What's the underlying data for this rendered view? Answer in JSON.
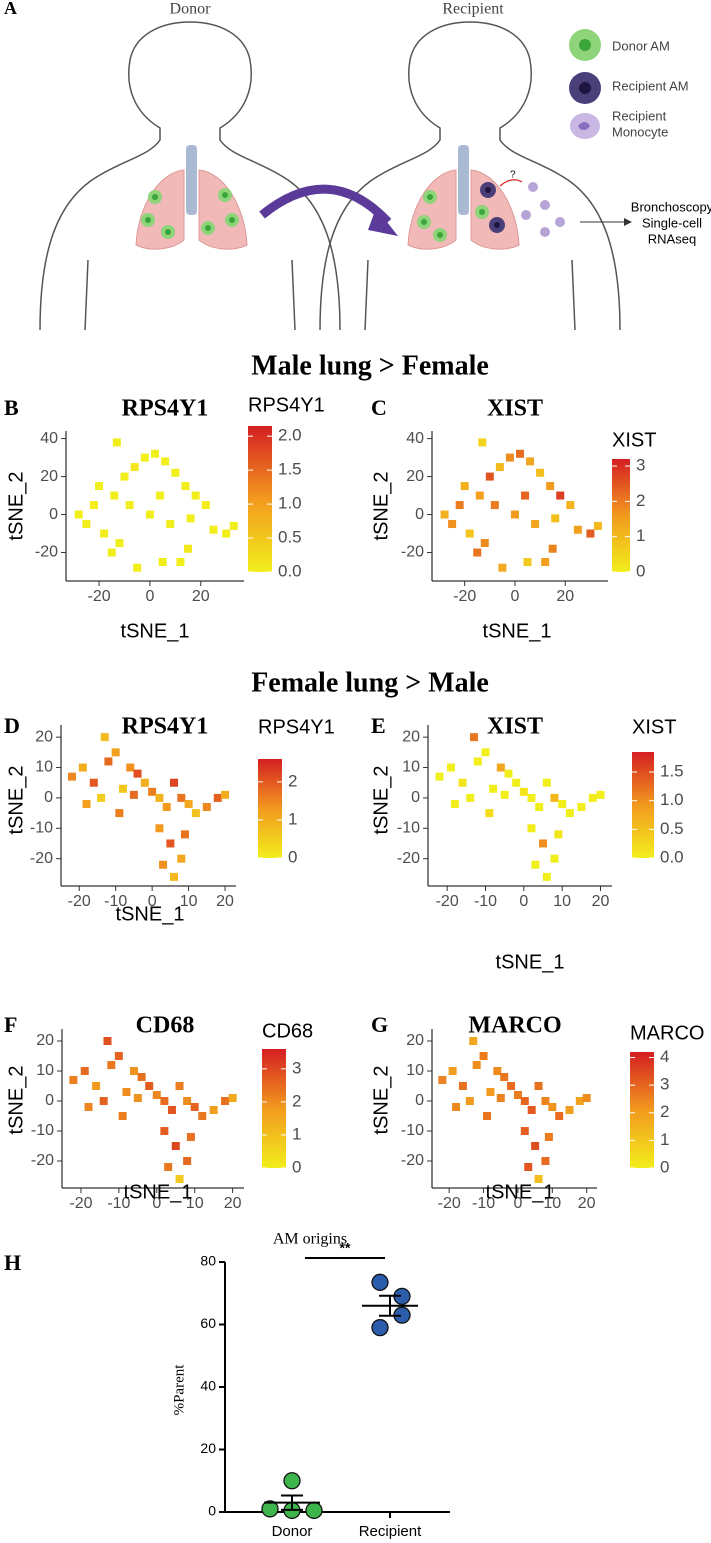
{
  "diagram": {
    "panel": "A",
    "donor": "Donor",
    "recipient": "Recipient",
    "question": "?",
    "legend": [
      [
        "Donor AM"
      ],
      [
        "Recipient AM"
      ],
      [
        "Recipient",
        "Monocyte"
      ]
    ],
    "outcome": [
      "Bronchoscopy",
      "Single-cell",
      "RNAseq"
    ]
  },
  "headings": [
    "Male lung > Female",
    "Female lung > Male"
  ],
  "chart_data": [
    {
      "type": "scatter",
      "panel": "B",
      "title": "RPS4Y1",
      "x_label": "tSNE_1",
      "y_label": "tSNE_2",
      "xlim": [
        -33,
        37
      ],
      "ylim": [
        -35,
        44
      ],
      "xticks": [
        -20,
        0,
        20
      ],
      "yticks": [
        -20,
        0,
        20,
        40
      ],
      "x": [
        -28,
        -22,
        -18,
        -14,
        -10,
        -6,
        -2,
        2,
        6,
        10,
        14,
        18,
        22,
        -25,
        -15,
        -5,
        5,
        15,
        25,
        30,
        33,
        -20,
        -8,
        0,
        8,
        16,
        -12,
        4,
        12,
        -13
      ],
      "y": [
        0,
        5,
        -10,
        10,
        20,
        25,
        30,
        32,
        28,
        22,
        15,
        10,
        5,
        -5,
        -20,
        -28,
        -25,
        -18,
        -8,
        -10,
        -6,
        15,
        5,
        0,
        -5,
        -2,
        -15,
        10,
        -25,
        38
      ],
      "values": [
        0,
        0,
        0,
        0,
        0,
        0.1,
        0,
        0,
        0,
        0,
        0,
        0,
        0,
        0,
        0,
        0,
        0,
        0.1,
        0,
        0,
        0,
        0,
        0,
        0,
        0,
        0,
        0,
        0,
        0,
        0
      ],
      "colorbar": {
        "title": "RPS4Y1",
        "lim": [
          0,
          2.15
        ],
        "colors": [
          "#f2ee1c",
          "#f29a1e",
          "#d41f22"
        ],
        "ticks": [
          {
            "value": 0,
            "label": "0.0"
          },
          {
            "value": 0.5,
            "label": "0.5"
          },
          {
            "value": 1,
            "label": "1.0"
          },
          {
            "value": 1.5,
            "label": "1.5"
          },
          {
            "value": 2,
            "label": "2.0"
          }
        ]
      }
    },
    {
      "type": "scatter",
      "panel": "C",
      "title": "XIST",
      "x_label": "tSNE_1",
      "y_label": "tSNE_2",
      "xlim": [
        -33,
        37
      ],
      "ylim": [
        -35,
        44
      ],
      "xticks": [
        -20,
        0,
        20
      ],
      "yticks": [
        -20,
        0,
        20,
        40
      ],
      "x": [
        -28,
        -22,
        -18,
        -14,
        -10,
        -6,
        -2,
        2,
        6,
        10,
        14,
        18,
        22,
        -25,
        -15,
        -5,
        5,
        15,
        25,
        30,
        33,
        -20,
        -8,
        0,
        8,
        16,
        -12,
        4,
        12,
        -13
      ],
      "y": [
        0,
        5,
        -10,
        10,
        20,
        25,
        30,
        32,
        28,
        22,
        15,
        10,
        5,
        -5,
        -20,
        -28,
        -25,
        -18,
        -8,
        -10,
        -6,
        15,
        5,
        0,
        -5,
        -2,
        -15,
        10,
        -25,
        38
      ],
      "values": [
        1.2,
        2,
        0.8,
        1.5,
        2.5,
        1,
        1.8,
        2.2,
        1.4,
        0.9,
        1.6,
        2.8,
        1.1,
        1.7,
        2.1,
        1.3,
        0.7,
        1.9,
        1.5,
        2.4,
        1.0,
        1.2,
        2.0,
        1.6,
        1.4,
        0.9,
        1.8,
        2.3,
        1.5,
        0.5
      ],
      "colorbar": {
        "title": "XIST",
        "lim": [
          0,
          3.2
        ],
        "colors": [
          "#f2ee1c",
          "#f29a1e",
          "#d41f22"
        ],
        "ticks": [
          0,
          1,
          2,
          3
        ]
      }
    },
    {
      "type": "scatter",
      "panel": "D",
      "title": "RPS4Y1",
      "x_label": "tSNE_1",
      "y_label": "tSNE_2",
      "xlim": [
        -25,
        23
      ],
      "ylim": [
        -29,
        24
      ],
      "xticks": [
        -20,
        -10,
        0,
        10,
        20
      ],
      "yticks": [
        -20,
        -10,
        0,
        10,
        20
      ],
      "x": [
        -22,
        -19,
        -16,
        -13,
        -12,
        -10,
        -8,
        -6,
        -4,
        -2,
        0,
        2,
        4,
        6,
        8,
        10,
        12,
        15,
        18,
        20,
        -18,
        -14,
        -9,
        -5,
        2,
        5,
        8,
        3,
        6,
        9
      ],
      "y": [
        7,
        10,
        5,
        20,
        12,
        15,
        3,
        10,
        8,
        5,
        2,
        0,
        -3,
        5,
        0,
        -2,
        -5,
        -3,
        0,
        1,
        -2,
        0,
        -5,
        1,
        -10,
        -15,
        -20,
        -22,
        -26,
        -12
      ],
      "values": [
        1.5,
        1,
        2,
        0.8,
        1.8,
        1.2,
        0.6,
        1.4,
        2.1,
        1,
        1.6,
        0.9,
        1.3,
        2.2,
        1.7,
        1.1,
        0.7,
        1.5,
        1.9,
        1.0,
        1.2,
        0.5,
        1.6,
        1.8,
        1.3,
        2.0,
        1.1,
        1.4,
        0.8,
        1.7
      ],
      "colorbar": {
        "title": "RPS4Y1",
        "lim": [
          0,
          2.6
        ],
        "colors": [
          "#f2ee1c",
          "#f29a1e",
          "#d41f22"
        ],
        "ticks": [
          0,
          1,
          2
        ]
      }
    },
    {
      "type": "scatter",
      "panel": "E",
      "title": "XIST",
      "x_label": "tSNE_1",
      "y_label": "tSNE_2",
      "xlim": [
        -25,
        23
      ],
      "ylim": [
        -29,
        24
      ],
      "xticks": [
        -20,
        -10,
        0,
        10,
        20
      ],
      "yticks": [
        -20,
        -10,
        0,
        10,
        20
      ],
      "x": [
        -22,
        -19,
        -16,
        -13,
        -12,
        -10,
        -8,
        -6,
        -4,
        -2,
        0,
        2,
        4,
        6,
        8,
        10,
        12,
        15,
        18,
        20,
        -18,
        -14,
        -9,
        -5,
        2,
        5,
        8,
        3,
        6,
        9
      ],
      "y": [
        7,
        10,
        5,
        20,
        12,
        15,
        3,
        10,
        8,
        5,
        2,
        0,
        -3,
        5,
        0,
        -2,
        -5,
        -3,
        0,
        1,
        -2,
        0,
        -5,
        1,
        -10,
        -15,
        -20,
        -22,
        -26,
        -12
      ],
      "values": [
        0,
        0,
        0.1,
        1.2,
        0,
        0,
        0,
        0.8,
        0,
        0,
        0.1,
        0,
        0,
        0,
        0.6,
        0,
        0,
        0,
        0,
        0,
        0,
        0,
        0.2,
        0,
        0,
        1.0,
        0,
        0,
        0,
        0.1
      ],
      "colorbar": {
        "title": "XIST",
        "lim": [
          0,
          1.85
        ],
        "colors": [
          "#f2ee1c",
          "#f29a1e",
          "#d41f22"
        ],
        "ticks": [
          {
            "value": 0,
            "label": "0.0"
          },
          {
            "value": 0.5,
            "label": "0.5"
          },
          {
            "value": 1,
            "label": "1.0"
          },
          {
            "value": 1.5,
            "label": "1.5"
          }
        ]
      }
    },
    {
      "type": "scatter",
      "panel": "F",
      "title": "CD68",
      "x_label": "tSNE_1",
      "y_label": "tSNE_2",
      "xlim": [
        -25,
        23
      ],
      "ylim": [
        -29,
        24
      ],
      "xticks": [
        -20,
        -10,
        0,
        10,
        20
      ],
      "yticks": [
        -20,
        -10,
        0,
        10,
        20
      ],
      "x": [
        -22,
        -19,
        -16,
        -13,
        -12,
        -10,
        -8,
        -6,
        -4,
        -2,
        0,
        2,
        4,
        6,
        8,
        10,
        12,
        15,
        18,
        20,
        -18,
        -14,
        -9,
        -5,
        2,
        5,
        8,
        3,
        6,
        9
      ],
      "y": [
        7,
        10,
        5,
        20,
        12,
        15,
        3,
        10,
        8,
        5,
        2,
        0,
        -3,
        5,
        0,
        -2,
        -5,
        -3,
        0,
        1,
        -2,
        0,
        -5,
        1,
        -10,
        -15,
        -20,
        -22,
        -26,
        -12
      ],
      "values": [
        2.2,
        2.5,
        1.8,
        2.9,
        2.3,
        2.6,
        2.0,
        1.9,
        2.4,
        2.7,
        2.1,
        2.5,
        2.8,
        2.2,
        2.0,
        2.6,
        2.3,
        1.7,
        2.4,
        1.5,
        2.1,
        2.6,
        2.2,
        1.9,
        2.7,
        3.0,
        2.5,
        2.3,
        0.8,
        2.4
      ],
      "colorbar": {
        "title": "CD68",
        "lim": [
          0,
          3.6
        ],
        "colors": [
          "#f2ee1c",
          "#f29a1e",
          "#d41f22"
        ],
        "ticks": [
          0,
          1,
          2,
          3
        ]
      }
    },
    {
      "type": "scatter",
      "panel": "G",
      "title": "MARCO",
      "x_label": "tSNE_1",
      "y_label": "tSNE_2",
      "xlim": [
        -25,
        23
      ],
      "ylim": [
        -29,
        24
      ],
      "xticks": [
        -20,
        -10,
        0,
        10,
        20
      ],
      "yticks": [
        -20,
        -10,
        0,
        10,
        20
      ],
      "x": [
        -22,
        -19,
        -16,
        -13,
        -12,
        -10,
        -8,
        -6,
        -4,
        -2,
        0,
        2,
        4,
        6,
        8,
        10,
        12,
        15,
        18,
        20,
        -18,
        -14,
        -9,
        -5,
        2,
        5,
        8,
        3,
        6,
        9
      ],
      "y": [
        7,
        10,
        5,
        20,
        12,
        15,
        3,
        10,
        8,
        5,
        2,
        0,
        -3,
        5,
        0,
        -2,
        -5,
        -3,
        0,
        1,
        -2,
        0,
        -5,
        1,
        -10,
        -15,
        -20,
        -22,
        -26,
        -12
      ],
      "values": [
        2.5,
        2.0,
        2.8,
        1.8,
        2.3,
        2.6,
        2.1,
        2.4,
        2.7,
        2.9,
        2.6,
        3.0,
        3.2,
        2.8,
        2.5,
        2.2,
        2.9,
        2.0,
        1.9,
        2.3,
        2.4,
        2.1,
        2.7,
        2.5,
        3.1,
        3.4,
        2.9,
        3.3,
        1.2,
        2.6
      ],
      "colorbar": {
        "title": "MARCO",
        "lim": [
          0,
          4.2
        ],
        "colors": [
          "#f2ee1c",
          "#f29a1e",
          "#d41f22"
        ],
        "ticks": [
          0,
          1,
          2,
          3,
          4
        ]
      }
    },
    {
      "type": "dot",
      "panel": "H",
      "title": "AM origins",
      "y_label": "%Parent",
      "annotation": "**",
      "categories": [
        "Donor",
        "Recipient"
      ],
      "ylim": [
        0,
        80
      ],
      "yticks": [
        0,
        20,
        40,
        60,
        80
      ],
      "groups": [
        {
          "color": "#3db54a",
          "values": [
            10,
            1,
            0.5,
            0.5
          ],
          "mean": 3,
          "error": 2.3
        },
        {
          "color": "#2b5dab",
          "values": [
            73.5,
            69,
            63,
            59
          ],
          "mean": 66,
          "error": 3.2
        }
      ]
    }
  ]
}
